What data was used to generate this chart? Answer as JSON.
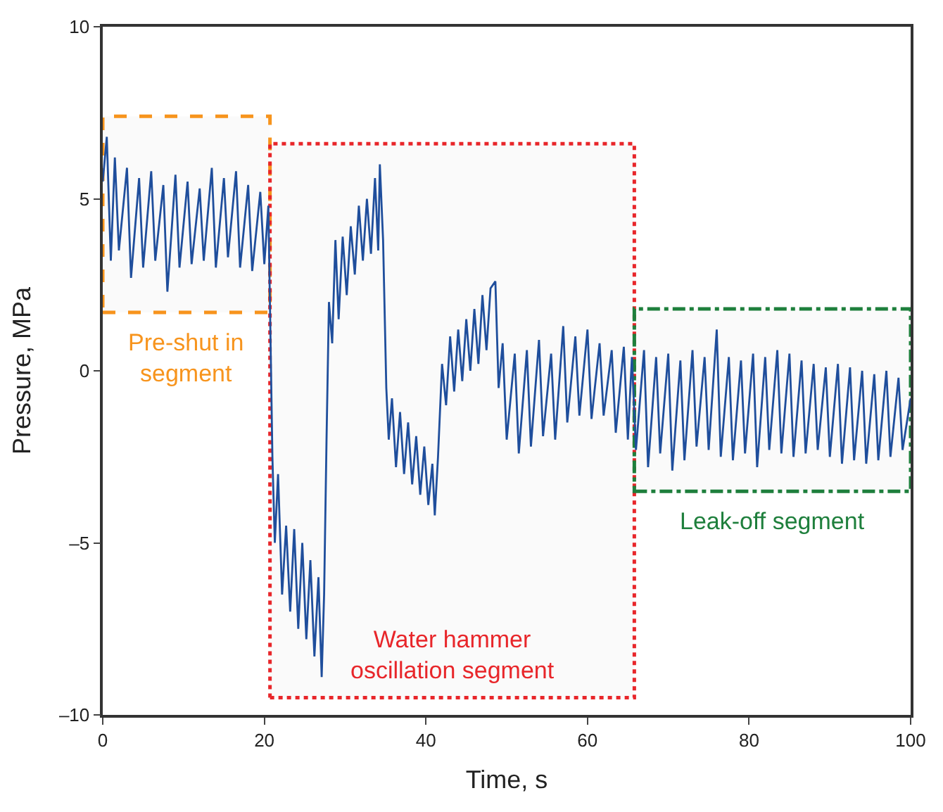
{
  "chart_data": {
    "type": "line",
    "xlabel": "Time, s",
    "ylabel": "Pressure, MPa",
    "xlim": [
      0,
      100
    ],
    "xticks": [
      0,
      20,
      40,
      60,
      80,
      100
    ],
    "ylim": [
      -10,
      10
    ],
    "yticks": [
      {
        "value": -10,
        "label": "–10"
      },
      {
        "value": -5,
        "label": "–5"
      },
      0,
      5,
      10
    ],
    "grid": false,
    "legend": false,
    "line_style": "solid",
    "marker": "none",
    "series": [
      {
        "color": "#1f4e9c",
        "x": [
          0,
          0.5,
          1,
          1.5,
          2,
          3,
          3.5,
          4.5,
          5,
          6,
          6.5,
          7.5,
          8,
          9,
          9.5,
          10.5,
          11,
          12,
          12.5,
          13.5,
          14,
          15,
          15.5,
          16.5,
          17,
          18,
          18.5,
          19.5,
          20,
          20.5,
          21,
          21.3,
          21.7,
          22.2,
          22.7,
          23.2,
          23.7,
          24.2,
          24.7,
          25.2,
          25.7,
          26.2,
          26.7,
          27.1,
          27.4,
          27.7,
          28,
          28.4,
          28.8,
          29.2,
          29.7,
          30.2,
          30.7,
          31.2,
          31.7,
          32.2,
          32.7,
          33.2,
          33.7,
          34.1,
          34.3,
          34.7,
          35.1,
          35.4,
          35.8,
          36.3,
          36.8,
          37.3,
          37.8,
          38.3,
          38.8,
          39.3,
          39.8,
          40.3,
          40.8,
          41.1,
          41.5,
          42,
          42.5,
          43,
          43.5,
          44,
          44.5,
          45,
          45.5,
          46,
          46.5,
          47,
          47.5,
          48,
          48.6,
          49,
          49.5,
          50,
          51,
          51.5,
          52.5,
          53,
          54,
          54.5,
          55.5,
          56,
          57,
          57.5,
          58.5,
          59,
          60,
          60.5,
          61.5,
          62,
          63,
          63.5,
          64.5,
          65,
          65.5,
          66,
          67,
          67.5,
          68.5,
          69,
          70,
          70.5,
          71.5,
          72,
          73,
          73.5,
          74.5,
          75,
          76,
          76.5,
          77.5,
          78,
          79,
          79.5,
          80.5,
          81,
          82,
          82.5,
          83.5,
          84,
          85,
          85.5,
          86.5,
          87,
          88,
          88.5,
          89.5,
          90,
          91,
          91.5,
          92.5,
          93,
          94,
          94.5,
          95.5,
          96,
          97,
          97.5,
          98.5,
          99,
          100
        ],
        "values": [
          5.5,
          6.8,
          3.2,
          6.2,
          3.5,
          5.9,
          2.7,
          5.6,
          3.0,
          5.8,
          3.2,
          5.4,
          2.3,
          5.7,
          3.0,
          5.5,
          3.1,
          5.3,
          3.2,
          5.9,
          3.0,
          5.6,
          3.3,
          5.8,
          3.0,
          5.4,
          2.9,
          5.2,
          3.1,
          4.8,
          -2.5,
          -5.0,
          -3.0,
          -6.5,
          -4.5,
          -7.0,
          -4.6,
          -7.5,
          -5.0,
          -7.8,
          -5.5,
          -8.3,
          -6.0,
          -8.9,
          -6.5,
          -2.0,
          2.0,
          0.8,
          3.8,
          1.5,
          3.9,
          2.2,
          4.2,
          2.8,
          4.8,
          3.2,
          5.0,
          3.4,
          5.6,
          3.5,
          6.0,
          3.8,
          -0.5,
          -2.0,
          -0.8,
          -2.8,
          -1.2,
          -3.0,
          -1.5,
          -3.3,
          -1.9,
          -3.6,
          -2.2,
          -3.9,
          -2.7,
          -4.2,
          -2.5,
          0.2,
          -1.0,
          1.0,
          -0.6,
          1.2,
          -0.3,
          1.5,
          0.0,
          1.8,
          0.2,
          2.2,
          0.6,
          2.4,
          2.6,
          -0.5,
          0.8,
          -2.0,
          0.5,
          -2.4,
          0.6,
          -2.2,
          0.9,
          -1.9,
          0.5,
          -2.0,
          1.3,
          -1.5,
          1.0,
          -1.3,
          1.2,
          -1.4,
          0.8,
          -1.3,
          0.6,
          -1.8,
          0.7,
          -2.0,
          0.4,
          -2.3,
          0.6,
          -2.8,
          0.4,
          -2.4,
          0.5,
          -2.9,
          0.3,
          -2.6,
          0.6,
          -2.2,
          0.4,
          -2.3,
          1.2,
          -2.5,
          0.4,
          -2.6,
          0.3,
          -2.4,
          0.5,
          -2.8,
          0.4,
          -2.3,
          0.6,
          -2.4,
          0.5,
          -2.5,
          0.3,
          -2.4,
          0.2,
          -2.3,
          0.1,
          -2.5,
          0.2,
          -2.7,
          0.1,
          -2.6,
          0.0,
          -2.7,
          -0.1,
          -2.6,
          0.0,
          -2.5,
          -0.2,
          -2.3,
          -0.8
        ]
      }
    ],
    "bands": [
      {
        "axis": "x",
        "from": 0,
        "to": 20.7,
        "label": "Pre-shut in\nsegment",
        "color": "#f7941d"
      },
      {
        "axis": "x",
        "from": 20.7,
        "to": 65.8,
        "label": "Water hammer\noscillation segment",
        "color": "#e8262a"
      },
      {
        "axis": "x",
        "from": 65.8,
        "to": 100,
        "label": "Leak-off segment",
        "color": "#1e7f3c"
      }
    ]
  }
}
